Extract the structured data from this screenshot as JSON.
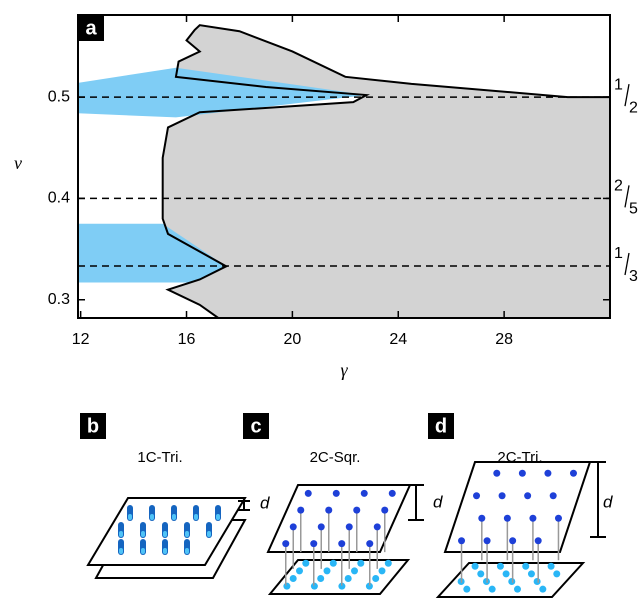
{
  "chart_data": {
    "type": "phase",
    "panel_label": "a",
    "x_label": "γ",
    "y_label": "ν",
    "xlim": [
      11.9,
      32.0
    ],
    "ylim": [
      0.282,
      0.581
    ],
    "xticks": [
      12,
      16,
      20,
      24,
      28
    ],
    "yticks": [
      0.3,
      0.4,
      0.5
    ],
    "regions": [
      {
        "color": "#d3d3d3",
        "x": [
          16.3,
          16.0,
          16.5,
          15.7,
          15.6,
          19.0,
          22.8,
          22.3,
          16.5,
          15.3,
          15.1,
          15.1,
          15.3,
          17.5,
          16.5,
          15.3,
          16.5,
          17.2,
          32.0,
          32.0,
          30.4,
          24.5,
          22.0,
          20.0,
          18.0,
          16.5
        ],
        "y": [
          0.566,
          0.556,
          0.545,
          0.535,
          0.52,
          0.51,
          0.502,
          0.495,
          0.485,
          0.47,
          0.44,
          0.38,
          0.365,
          0.333,
          0.32,
          0.31,
          0.295,
          0.282,
          0.282,
          0.5,
          0.5,
          0.513,
          0.52,
          0.545,
          0.565,
          0.571
        ]
      }
    ],
    "bands": [
      {
        "color": "#7fcdf5",
        "x": [
          11.9,
          11.9,
          15.6,
          22.8,
          15.6
        ],
        "y": [
          0.484,
          0.514,
          0.529,
          0.502,
          0.48
        ]
      },
      {
        "color": "#7fcdf5",
        "x": [
          11.9,
          11.9,
          15.1,
          17.5,
          16.2
        ],
        "y": [
          0.317,
          0.375,
          0.375,
          0.333,
          0.317
        ]
      }
    ],
    "reference_lines": [
      {
        "value": 0.5,
        "numerator": "1",
        "denominator": "2"
      },
      {
        "value": 0.4,
        "numerator": "2",
        "denominator": "5"
      },
      {
        "value": 0.3333,
        "numerator": "1",
        "denominator": "3"
      }
    ]
  },
  "panels": [
    {
      "label": "b",
      "title": "1C-Tri.",
      "spacing_label": "d"
    },
    {
      "label": "c",
      "title": "2C-Sqr.",
      "spacing_label": "d"
    },
    {
      "label": "d",
      "title": "2C-Tri.",
      "spacing_label": "d"
    }
  ]
}
